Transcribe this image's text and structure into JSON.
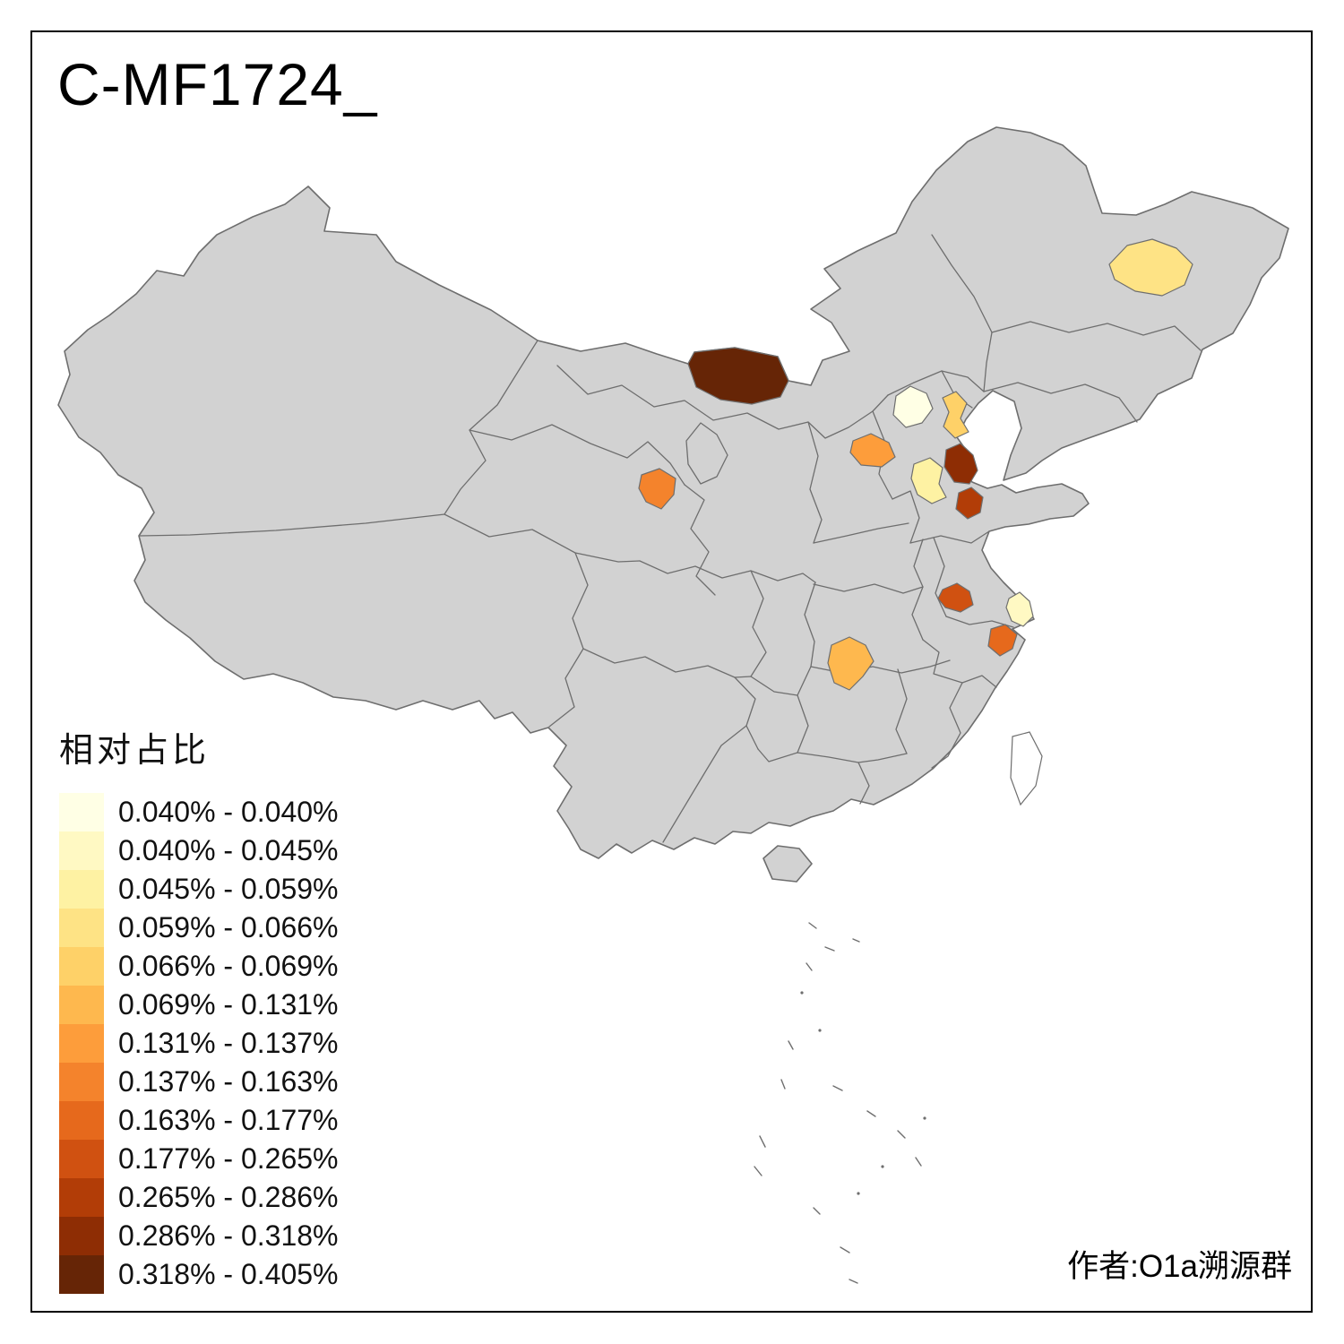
{
  "title": "C-MF1724_",
  "attribution": "作者:O1a溯源群",
  "legend": {
    "title": "相对占比",
    "entries": [
      {
        "label": "0.040% - 0.040%",
        "color": "#FFFFE5"
      },
      {
        "label": "0.040% - 0.045%",
        "color": "#FFF9C3"
      },
      {
        "label": "0.045% - 0.059%",
        "color": "#FEF2A3"
      },
      {
        "label": "0.059% - 0.066%",
        "color": "#FEE385"
      },
      {
        "label": "0.066% - 0.069%",
        "color": "#FED168"
      },
      {
        "label": "0.069% - 0.131%",
        "color": "#FEB84E"
      },
      {
        "label": "0.131% - 0.137%",
        "color": "#FD9D3B"
      },
      {
        "label": "0.137% - 0.163%",
        "color": "#F4832C"
      },
      {
        "label": "0.163% - 0.177%",
        "color": "#E6691C"
      },
      {
        "label": "0.177% - 0.265%",
        "color": "#D05111"
      },
      {
        "label": "0.265% - 0.286%",
        "color": "#B23D07"
      },
      {
        "label": "0.286% - 0.318%",
        "color": "#8E2D04"
      },
      {
        "label": "0.318% - 0.405%",
        "color": "#662506"
      }
    ]
  },
  "map": {
    "land_fill": "#D2D2D2",
    "border_color": "#6E6E6E",
    "sea_fill": "#FFFFFF",
    "regions": [
      {
        "id": "region-beijing-area",
        "bucket": 0
      },
      {
        "id": "region-shanghai-area",
        "bucket": 1
      },
      {
        "id": "region-west-shandong",
        "bucket": 2
      },
      {
        "id": "region-northeast",
        "bucket": 3
      },
      {
        "id": "region-tianjin-area",
        "bucket": 4
      },
      {
        "id": "region-hunan-area",
        "bucket": 5
      },
      {
        "id": "region-central-hebei",
        "bucket": 6
      },
      {
        "id": "region-ningxia-area",
        "bucket": 7
      },
      {
        "id": "region-zhejiang-area",
        "bucket": 8
      },
      {
        "id": "region-anhui-area",
        "bucket": 9
      },
      {
        "id": "region-central-shandong",
        "bucket": 10
      },
      {
        "id": "region-bohai-coast",
        "bucket": 11
      },
      {
        "id": "region-north-border",
        "bucket": 12
      }
    ]
  }
}
